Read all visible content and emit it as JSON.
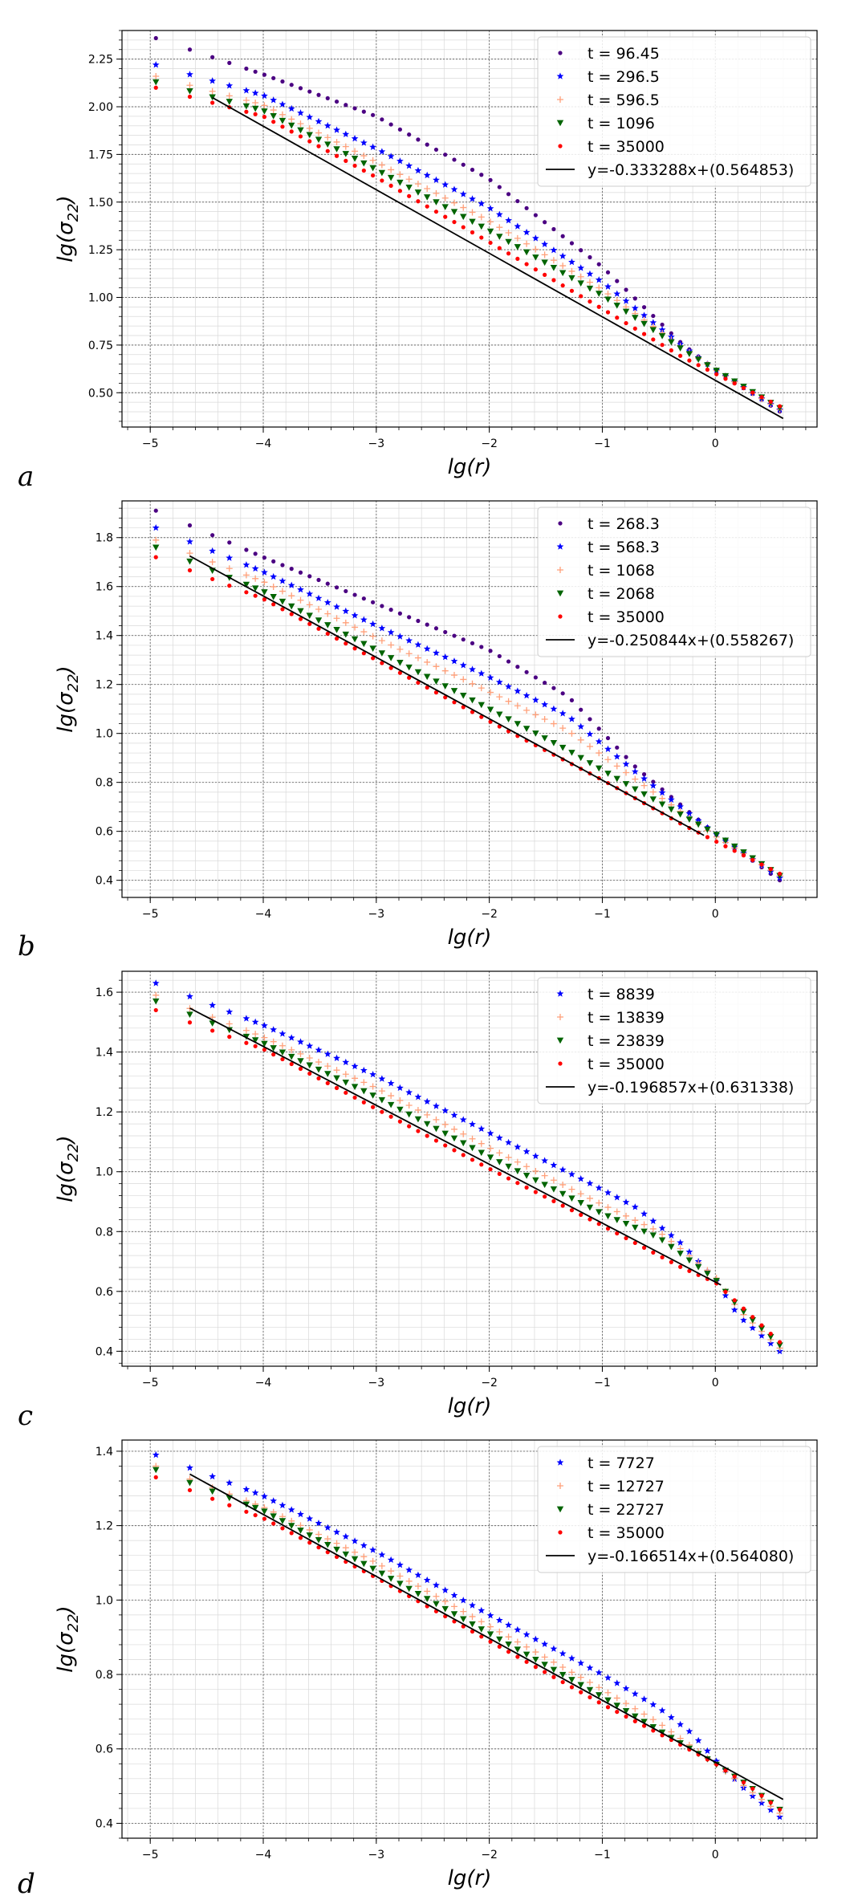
{
  "chart_data": [
    {
      "type": "scatter",
      "panel_label": "a",
      "xlabel": "lg(r)",
      "ylabel_main": "lg(σ",
      "ylabel_sub": "22",
      "ylabel_close": ")",
      "xlim": [
        -5.25,
        0.9
      ],
      "ylim": [
        0.32,
        2.4
      ],
      "xticks": [
        -5,
        -4,
        -3,
        -2,
        -1,
        0
      ],
      "xtick_labels": [
        "−5",
        "−4",
        "−3",
        "−2",
        "−1",
        "0"
      ],
      "yticks": [
        0.5,
        0.75,
        1.0,
        1.25,
        1.5,
        1.75,
        2.0,
        2.25
      ],
      "ytick_labels": [
        "0.50",
        "0.75",
        "1.00",
        "1.25",
        "1.50",
        "1.75",
        "2.00",
        "2.25"
      ],
      "legend_position": "top-right",
      "series": [
        {
          "label": "t = 96.45",
          "marker": "dot",
          "color": "#4b0082",
          "curve": [
            [
              -4.95,
              2.36
            ],
            [
              -4.0,
              2.17
            ],
            [
              -3.0,
              1.95
            ],
            [
              -2.0,
              1.62
            ],
            [
              -1.0,
              1.16
            ],
            [
              -0.3,
              0.76
            ],
            [
              0.0,
              0.62
            ],
            [
              0.6,
              0.39
            ]
          ]
        },
        {
          "label": "t = 296.5",
          "marker": "star",
          "color": "#0000ff",
          "curve": [
            [
              -4.95,
              2.22
            ],
            [
              -4.0,
              2.06
            ],
            [
              -3.0,
              1.78
            ],
            [
              -2.0,
              1.47
            ],
            [
              -1.0,
              1.08
            ],
            [
              -0.3,
              0.75
            ],
            [
              0.0,
              0.62
            ],
            [
              0.6,
              0.4
            ]
          ]
        },
        {
          "label": "t = 596.5",
          "marker": "plus",
          "color": "#ffa07a",
          "curve": [
            [
              -4.95,
              2.16
            ],
            [
              -4.0,
              2.01
            ],
            [
              -3.0,
              1.71
            ],
            [
              -2.0,
              1.4
            ],
            [
              -1.0,
              1.04
            ],
            [
              -0.3,
              0.74
            ],
            [
              0.0,
              0.62
            ],
            [
              0.6,
              0.4
            ]
          ]
        },
        {
          "label": "t = 1096",
          "marker": "triangle-down",
          "color": "#006400",
          "curve": [
            [
              -4.95,
              2.13
            ],
            [
              -4.0,
              1.98
            ],
            [
              -3.0,
              1.67
            ],
            [
              -2.0,
              1.35
            ],
            [
              -1.0,
              1.01
            ],
            [
              -0.3,
              0.73
            ],
            [
              0.0,
              0.62
            ],
            [
              0.6,
              0.41
            ]
          ]
        },
        {
          "label": "t = 35000",
          "marker": "dot",
          "color": "#ff0000",
          "curve": [
            [
              -4.95,
              2.1
            ],
            [
              -4.0,
              1.95
            ],
            [
              -3.0,
              1.63
            ],
            [
              -2.0,
              1.29
            ],
            [
              -1.0,
              0.94
            ],
            [
              -0.3,
              0.69
            ],
            [
              0.0,
              0.6
            ],
            [
              0.6,
              0.42
            ]
          ]
        }
      ],
      "fit": {
        "label": "y=-0.333288x+(0.564853)",
        "slope": -0.333288,
        "intercept": 0.564853,
        "x_range": [
          -4.45,
          0.6
        ],
        "color": "#000000"
      }
    },
    {
      "type": "scatter",
      "panel_label": "b",
      "xlabel": "lg(r)",
      "ylabel_main": "lg(σ",
      "ylabel_sub": "22",
      "ylabel_close": ")",
      "xlim": [
        -5.25,
        0.9
      ],
      "ylim": [
        0.33,
        1.95
      ],
      "xticks": [
        -5,
        -4,
        -3,
        -2,
        -1,
        0
      ],
      "xtick_labels": [
        "−5",
        "−4",
        "−3",
        "−2",
        "−1",
        "0"
      ],
      "yticks": [
        0.4,
        0.6,
        0.8,
        1.0,
        1.2,
        1.4,
        1.6,
        1.8
      ],
      "ytick_labels": [
        "0.4",
        "0.6",
        "0.8",
        "1.0",
        "1.2",
        "1.4",
        "1.6",
        "1.8"
      ],
      "legend_position": "top-right",
      "series": [
        {
          "label": "t = 268.3",
          "marker": "dot",
          "color": "#4b0082",
          "curve": [
            [
              -4.95,
              1.91
            ],
            [
              -4.0,
              1.72
            ],
            [
              -3.0,
              1.53
            ],
            [
              -2.0,
              1.34
            ],
            [
              -1.3,
              1.15
            ],
            [
              -0.7,
              0.86
            ],
            [
              0.0,
              0.59
            ],
            [
              0.6,
              0.39
            ]
          ]
        },
        {
          "label": "t = 568.3",
          "marker": "star",
          "color": "#0000ff",
          "curve": [
            [
              -4.95,
              1.84
            ],
            [
              -4.0,
              1.66
            ],
            [
              -3.0,
              1.44
            ],
            [
              -2.0,
              1.23
            ],
            [
              -1.3,
              1.07
            ],
            [
              -0.7,
              0.84
            ],
            [
              0.0,
              0.59
            ],
            [
              0.6,
              0.4
            ]
          ]
        },
        {
          "label": "t = 1068",
          "marker": "plus",
          "color": "#ffa07a",
          "curve": [
            [
              -4.95,
              1.79
            ],
            [
              -4.0,
              1.62
            ],
            [
              -3.0,
              1.39
            ],
            [
              -2.0,
              1.17
            ],
            [
              -1.3,
              1.01
            ],
            [
              -0.7,
              0.81
            ],
            [
              0.0,
              0.58
            ],
            [
              0.6,
              0.41
            ]
          ]
        },
        {
          "label": "t = 2068",
          "marker": "triangle-down",
          "color": "#006400",
          "curve": [
            [
              -4.95,
              1.76
            ],
            [
              -4.0,
              1.58
            ],
            [
              -3.0,
              1.34
            ],
            [
              -2.0,
              1.1
            ],
            [
              -1.3,
              0.93
            ],
            [
              -0.7,
              0.77
            ],
            [
              0.0,
              0.59
            ],
            [
              0.6,
              0.41
            ]
          ]
        },
        {
          "label": "t = 35000",
          "marker": "dot",
          "color": "#ff0000",
          "curve": [
            [
              -4.95,
              1.72
            ],
            [
              -4.0,
              1.55
            ],
            [
              -3.0,
              1.3
            ],
            [
              -2.0,
              1.05
            ],
            [
              -1.0,
              0.81
            ],
            [
              -0.3,
              0.63
            ],
            [
              0.0,
              0.56
            ],
            [
              0.6,
              0.42
            ]
          ]
        }
      ],
      "fit": {
        "label": "y=-0.250844x+(0.558267)",
        "slope": -0.250844,
        "intercept": 0.558267,
        "x_range": [
          -4.65,
          -0.1
        ],
        "color": "#000000"
      }
    },
    {
      "type": "scatter",
      "panel_label": "c",
      "xlabel": "lg(r)",
      "ylabel_main": "lg(σ",
      "ylabel_sub": "22",
      "ylabel_close": ")",
      "xlim": [
        -5.25,
        0.9
      ],
      "ylim": [
        0.35,
        1.67
      ],
      "xticks": [
        -5,
        -4,
        -3,
        -2,
        -1,
        0
      ],
      "xtick_labels": [
        "−5",
        "−4",
        "−3",
        "−2",
        "−1",
        "0"
      ],
      "yticks": [
        0.4,
        0.6,
        0.8,
        1.0,
        1.2,
        1.4,
        1.6
      ],
      "ytick_labels": [
        "0.4",
        "0.6",
        "0.8",
        "1.0",
        "1.2",
        "1.4",
        "1.6"
      ],
      "legend_position": "top-right",
      "series": [
        {
          "label": "t = 8839",
          "marker": "star",
          "color": "#0000ff",
          "curve": [
            [
              -4.95,
              1.63
            ],
            [
              -4.0,
              1.49
            ],
            [
              -3.0,
              1.32
            ],
            [
              -2.0,
              1.13
            ],
            [
              -1.0,
              0.94
            ],
            [
              -0.7,
              0.88
            ],
            [
              -0.3,
              0.76
            ],
            [
              0.0,
              0.64
            ],
            [
              0.2,
              0.52
            ],
            [
              0.6,
              0.39
            ]
          ]
        },
        {
          "label": "t = 13839",
          "marker": "plus",
          "color": "#ffa07a",
          "curve": [
            [
              -4.95,
              1.59
            ],
            [
              -4.0,
              1.45
            ],
            [
              -3.0,
              1.28
            ],
            [
              -2.0,
              1.08
            ],
            [
              -1.0,
              0.89
            ],
            [
              -0.5,
              0.8
            ],
            [
              0.0,
              0.65
            ],
            [
              0.2,
              0.54
            ],
            [
              0.6,
              0.4
            ]
          ]
        },
        {
          "label": "t = 23839",
          "marker": "triangle-down",
          "color": "#006400",
          "curve": [
            [
              -4.95,
              1.57
            ],
            [
              -4.0,
              1.43
            ],
            [
              -3.0,
              1.25
            ],
            [
              -2.0,
              1.05
            ],
            [
              -1.0,
              0.86
            ],
            [
              -0.5,
              0.78
            ],
            [
              0.0,
              0.64
            ],
            [
              0.2,
              0.55
            ],
            [
              0.6,
              0.41
            ]
          ]
        },
        {
          "label": "t = 35000",
          "marker": "dot",
          "color": "#ff0000",
          "curve": [
            [
              -4.95,
              1.54
            ],
            [
              -4.0,
              1.41
            ],
            [
              -3.0,
              1.21
            ],
            [
              -2.0,
              1.01
            ],
            [
              -1.0,
              0.82
            ],
            [
              -0.3,
              0.68
            ],
            [
              0.0,
              0.63
            ],
            [
              0.2,
              0.56
            ],
            [
              0.6,
              0.42
            ]
          ]
        }
      ],
      "fit": {
        "label": "y=-0.196857x+(0.631338)",
        "slope": -0.196857,
        "intercept": 0.631338,
        "x_range": [
          -4.65,
          0.05
        ],
        "color": "#000000"
      }
    },
    {
      "type": "scatter",
      "panel_label": "d",
      "xlabel": "lg(r)",
      "ylabel_main": "lg(σ",
      "ylabel_sub": "22",
      "ylabel_close": ")",
      "xlim": [
        -5.25,
        0.9
      ],
      "ylim": [
        0.36,
        1.43
      ],
      "xticks": [
        -5,
        -4,
        -3,
        -2,
        -1,
        0
      ],
      "xtick_labels": [
        "−5",
        "−4",
        "−3",
        "−2",
        "−1",
        "0"
      ],
      "yticks": [
        0.4,
        0.6,
        0.8,
        1.0,
        1.2,
        1.4
      ],
      "ytick_labels": [
        "0.4",
        "0.6",
        "0.8",
        "1.0",
        "1.2",
        "1.4"
      ],
      "legend_position": "top-right",
      "series": [
        {
          "label": "t = 7727",
          "marker": "star",
          "color": "#0000ff",
          "curve": [
            [
              -4.95,
              1.39
            ],
            [
              -4.0,
              1.28
            ],
            [
              -3.0,
              1.13
            ],
            [
              -2.0,
              0.96
            ],
            [
              -1.0,
              0.8
            ],
            [
              -0.5,
              0.71
            ],
            [
              -0.2,
              0.64
            ],
            [
              0.0,
              0.57
            ],
            [
              0.3,
              0.48
            ],
            [
              0.6,
              0.41
            ]
          ]
        },
        {
          "label": "t = 12727",
          "marker": "plus",
          "color": "#ffa07a",
          "curve": [
            [
              -4.95,
              1.36
            ],
            [
              -4.0,
              1.25
            ],
            [
              -3.0,
              1.1
            ],
            [
              -2.0,
              0.93
            ],
            [
              -1.0,
              0.76
            ],
            [
              -0.5,
              0.67
            ],
            [
              0.0,
              0.56
            ],
            [
              0.3,
              0.49
            ],
            [
              0.6,
              0.42
            ]
          ]
        },
        {
          "label": "t = 22727",
          "marker": "triangle-down",
          "color": "#006400",
          "curve": [
            [
              -4.95,
              1.35
            ],
            [
              -4.0,
              1.24
            ],
            [
              -3.0,
              1.08
            ],
            [
              -2.0,
              0.91
            ],
            [
              -1.0,
              0.74
            ],
            [
              -0.5,
              0.65
            ],
            [
              0.0,
              0.56
            ],
            [
              0.3,
              0.5
            ],
            [
              0.6,
              0.43
            ]
          ]
        },
        {
          "label": "t = 35000",
          "marker": "dot",
          "color": "#ff0000",
          "curve": [
            [
              -4.95,
              1.33
            ],
            [
              -4.0,
              1.22
            ],
            [
              -3.0,
              1.06
            ],
            [
              -2.0,
              0.89
            ],
            [
              -1.0,
              0.72
            ],
            [
              -0.3,
              0.61
            ],
            [
              0.0,
              0.56
            ],
            [
              0.3,
              0.5
            ],
            [
              0.6,
              0.43
            ]
          ]
        }
      ],
      "fit": {
        "label": "y=-0.166514x+(0.564080)",
        "slope": -0.166514,
        "intercept": 0.56408,
        "x_range": [
          -4.65,
          0.6
        ],
        "color": "#000000"
      }
    }
  ]
}
